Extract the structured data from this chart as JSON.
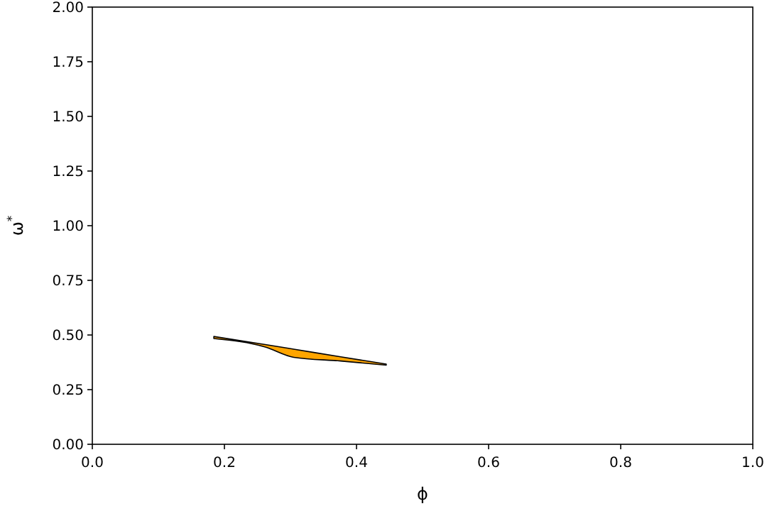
{
  "chart_data": {
    "type": "area",
    "xlabel": "ϕ",
    "ylabel": "ω$^{*}$",
    "xlim": [
      0,
      1
    ],
    "ylim": [
      0,
      2
    ],
    "xticks": [
      {
        "value": 0,
        "label": "0.0"
      },
      {
        "value": 0.2,
        "label": "0.2"
      },
      {
        "value": 0.4,
        "label": "0.4"
      },
      {
        "value": 0.6,
        "label": "0.6"
      },
      {
        "value": 0.8,
        "label": "0.8"
      },
      {
        "value": 1,
        "label": "1.0"
      }
    ],
    "yticks": [
      {
        "value": 0,
        "label": "0.00"
      },
      {
        "value": 0.25,
        "label": "0.25"
      },
      {
        "value": 0.5,
        "label": "0.50"
      },
      {
        "value": 0.75,
        "label": "0.75"
      },
      {
        "value": 1,
        "label": "1.00"
      },
      {
        "value": 1.25,
        "label": "1.25"
      },
      {
        "value": 1.5,
        "label": "1.50"
      },
      {
        "value": 1.75,
        "label": "1.75"
      },
      {
        "value": 2,
        "label": "2.00"
      }
    ],
    "x": [
      0.184,
      0.262,
      0.305,
      0.376,
      0.445
    ],
    "series": [
      {
        "color": "#ffa500",
        "values": [
          null,
          null,
          null,
          null,
          null
        ],
        "upper": [
          0.493,
          0.456,
          0.435,
          0.4,
          0.367
        ],
        "lower": [
          0.484,
          0.445,
          0.398,
          0.381,
          0.362
        ]
      }
    ]
  }
}
